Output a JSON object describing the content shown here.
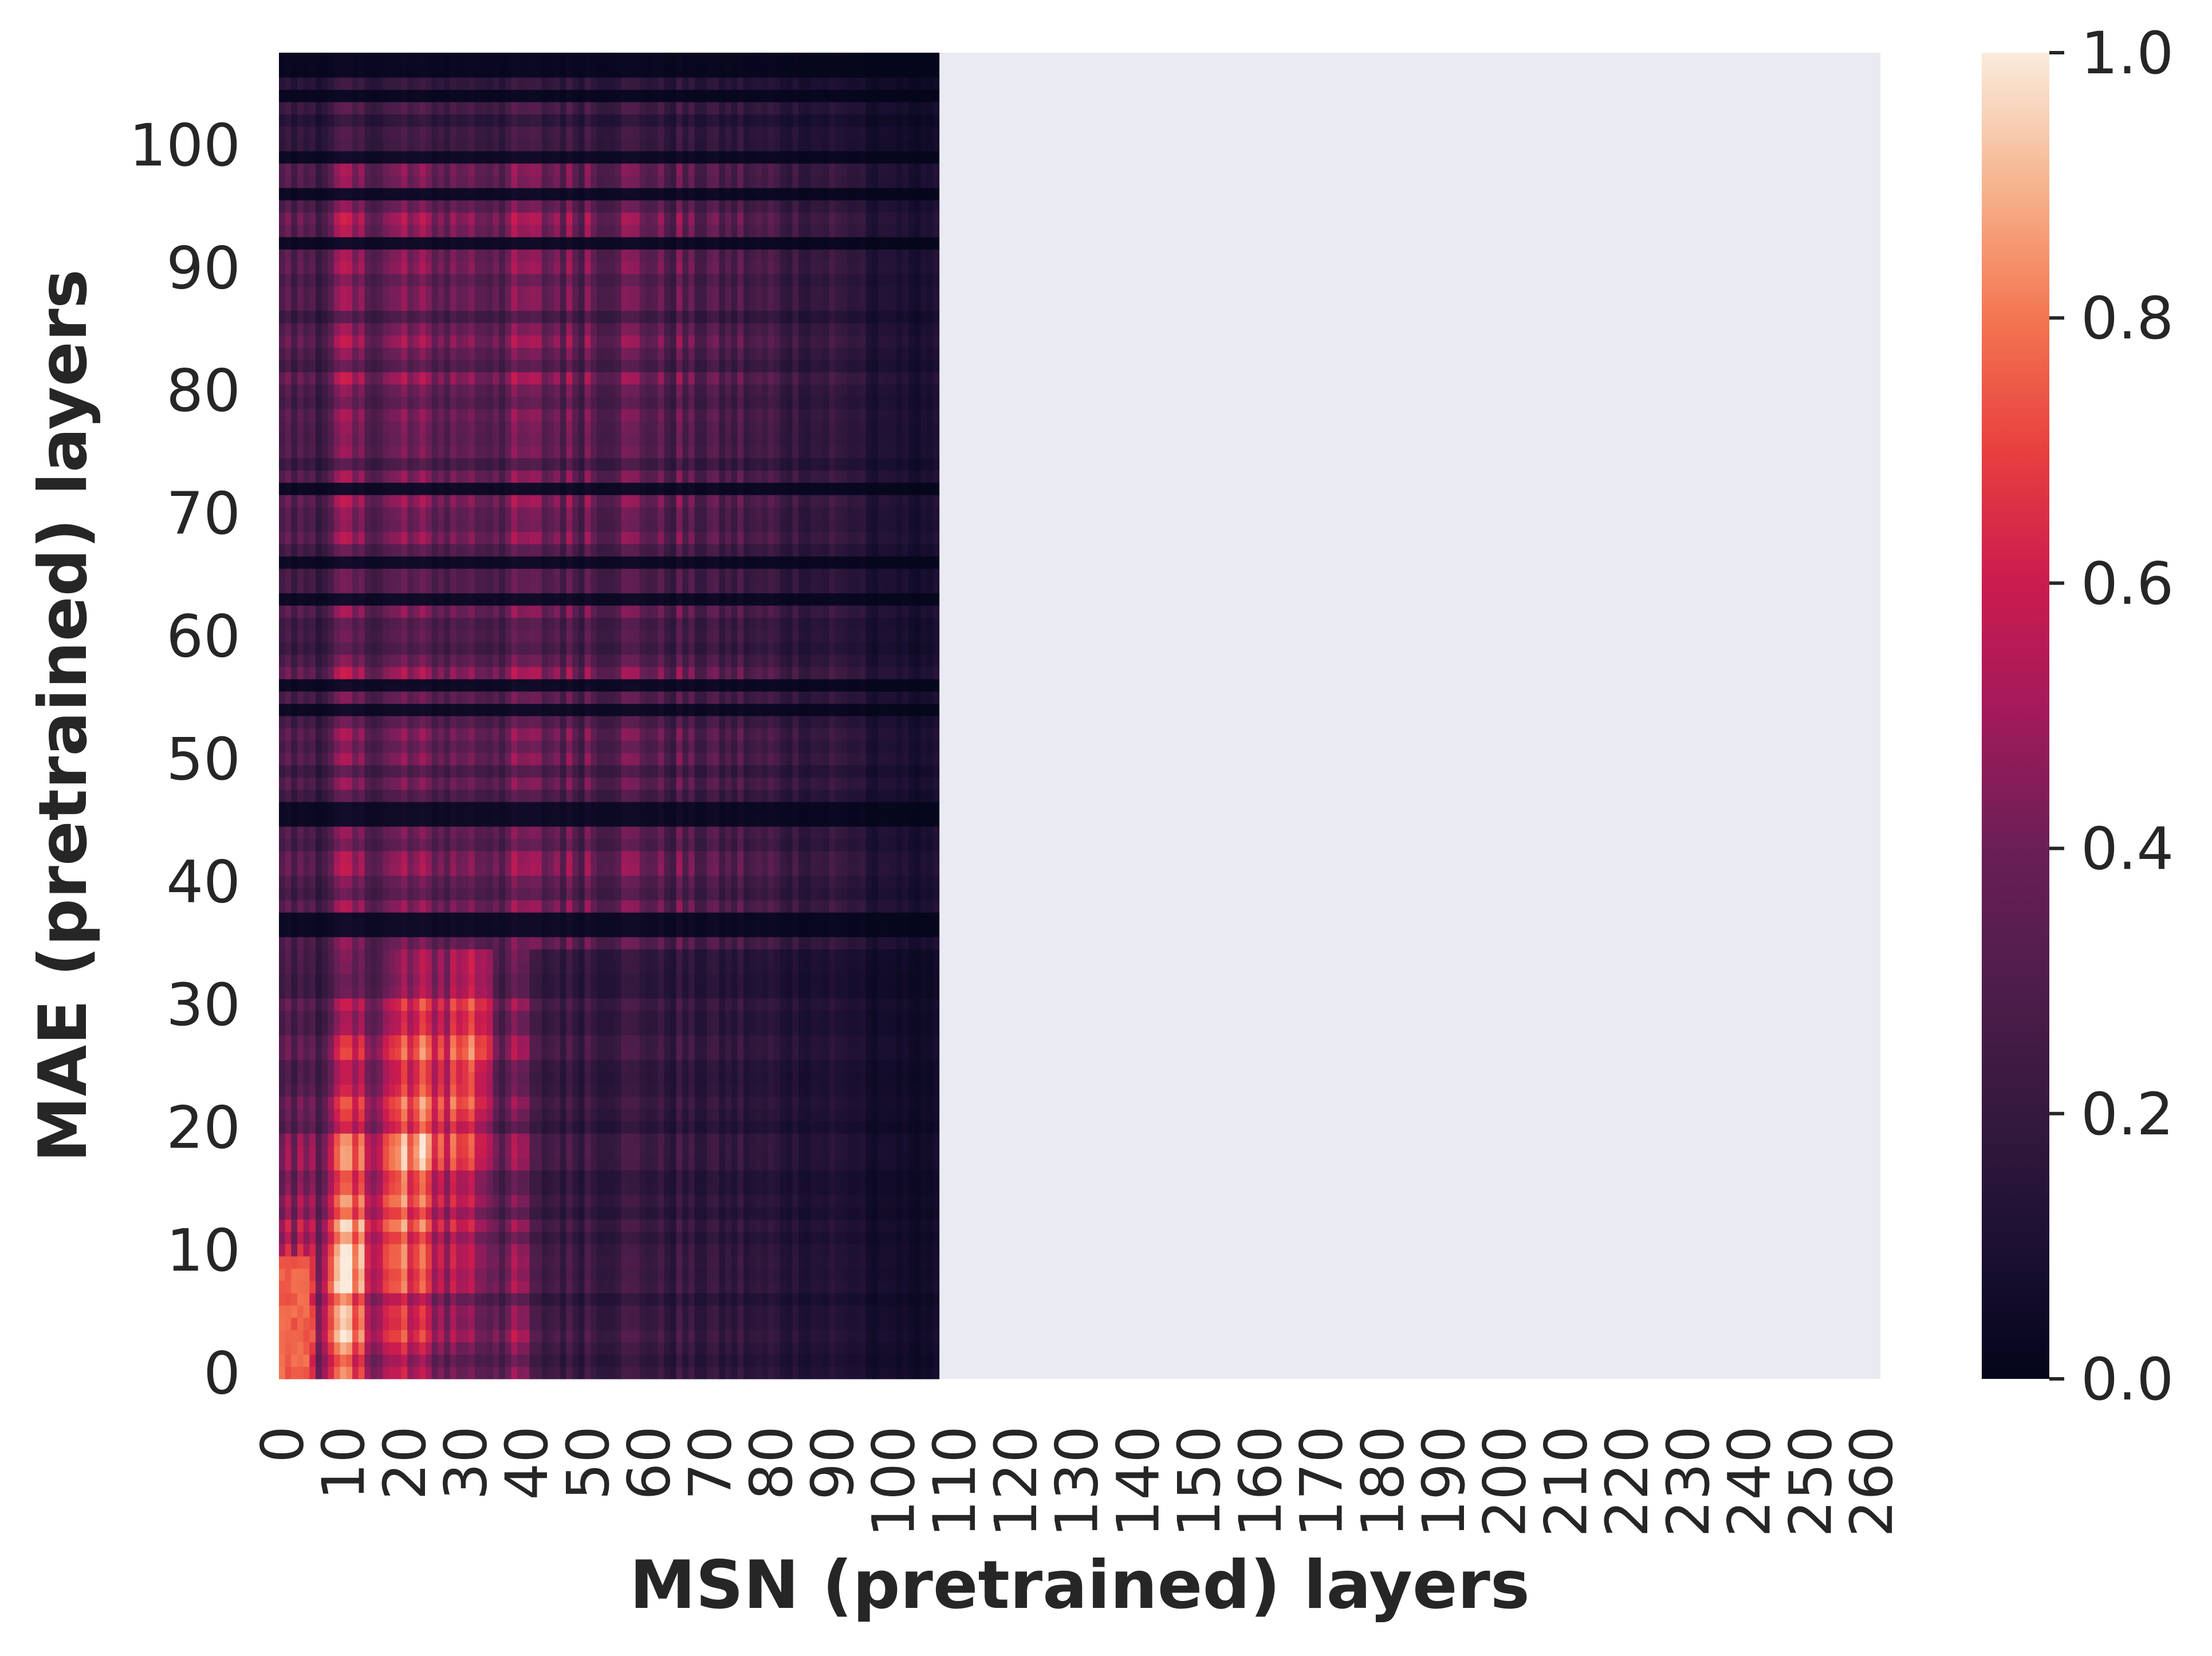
{
  "chart_data": {
    "type": "heatmap",
    "xlabel": "MSN (pretrained) layers",
    "ylabel": "MAE (pretrained) layers",
    "x_tick_labels": [
      "0",
      "10",
      "20",
      "30",
      "40",
      "50",
      "60",
      "70",
      "80",
      "90",
      "100",
      "110",
      "120",
      "130",
      "140",
      "150",
      "160",
      "170",
      "180",
      "190",
      "200",
      "210",
      "220",
      "230",
      "240",
      "250",
      "260"
    ],
    "y_tick_labels": [
      "0",
      "10",
      "20",
      "30",
      "40",
      "50",
      "60",
      "70",
      "80",
      "90",
      "100"
    ],
    "x_count": 262,
    "y_count": 108,
    "filled_x_count": 108,
    "empty_region_color": "#eaeaf2",
    "colorbar": {
      "min": 0.0,
      "max": 1.0,
      "tick_labels": [
        "0.0",
        "0.2",
        "0.4",
        "0.6",
        "0.8",
        "1.0"
      ],
      "colormap": "rocket"
    },
    "value_description": "similarity between MAE layer (row) and MSN layer (column); diagonal blocks up to ~0.75 at low layers, mostly 0.05-0.6 elsewhere; columns beyond 108 empty"
  }
}
